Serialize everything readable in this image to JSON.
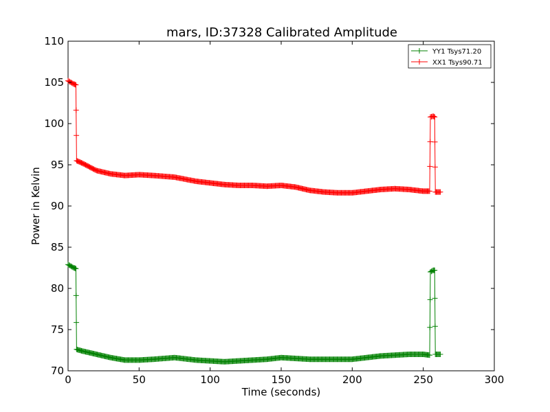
{
  "chart_data": {
    "type": "line",
    "title": "mars, ID:37328 Calibrated Amplitude",
    "xlabel": "Time (seconds)",
    "ylabel": "Power in Kelvin",
    "xlim": [
      0,
      300
    ],
    "ylim": [
      70,
      110
    ],
    "xticks": [
      "0",
      "50",
      "100",
      "150",
      "200",
      "250",
      "300"
    ],
    "yticks": [
      "70",
      "75",
      "80",
      "85",
      "90",
      "95",
      "100",
      "105",
      "110"
    ],
    "grid": false,
    "legend_position": "top-right",
    "marker": "+",
    "series": [
      {
        "name": "YY1 Tsys71.20",
        "color": "#008000",
        "x": [
          0,
          2,
          4,
          5.5,
          6,
          10,
          20,
          30,
          40,
          50,
          60,
          75,
          90,
          100,
          110,
          120,
          130,
          140,
          150,
          160,
          170,
          180,
          190,
          200,
          210,
          220,
          230,
          240,
          250,
          254.5,
          255,
          257,
          258,
          258.5,
          262
        ],
        "y": [
          82.9,
          82.7,
          82.5,
          82.4,
          72.6,
          72.4,
          72.0,
          71.6,
          71.3,
          71.3,
          71.4,
          71.6,
          71.3,
          71.2,
          71.1,
          71.2,
          71.3,
          71.4,
          71.6,
          71.5,
          71.4,
          71.4,
          71.4,
          71.4,
          71.6,
          71.8,
          71.9,
          72.0,
          72.0,
          71.9,
          82.0,
          82.2,
          82.2,
          72.0,
          72.0
        ]
      },
      {
        "name": "XX1 Tsys90.71",
        "color": "#ff0000",
        "x": [
          0,
          2,
          4,
          5.5,
          6,
          10,
          20,
          30,
          40,
          50,
          60,
          75,
          90,
          100,
          110,
          120,
          130,
          140,
          150,
          160,
          170,
          180,
          190,
          200,
          210,
          220,
          230,
          240,
          250,
          254.5,
          255,
          257,
          258,
          258.5,
          262
        ],
        "y": [
          105.2,
          105.0,
          104.8,
          104.7,
          95.5,
          95.2,
          94.3,
          93.9,
          93.7,
          93.8,
          93.7,
          93.5,
          93.0,
          92.8,
          92.6,
          92.5,
          92.5,
          92.4,
          92.5,
          92.3,
          91.9,
          91.7,
          91.6,
          91.6,
          91.8,
          92.0,
          92.1,
          92.0,
          91.8,
          91.8,
          100.8,
          100.9,
          100.8,
          91.7,
          91.7
        ]
      }
    ]
  }
}
